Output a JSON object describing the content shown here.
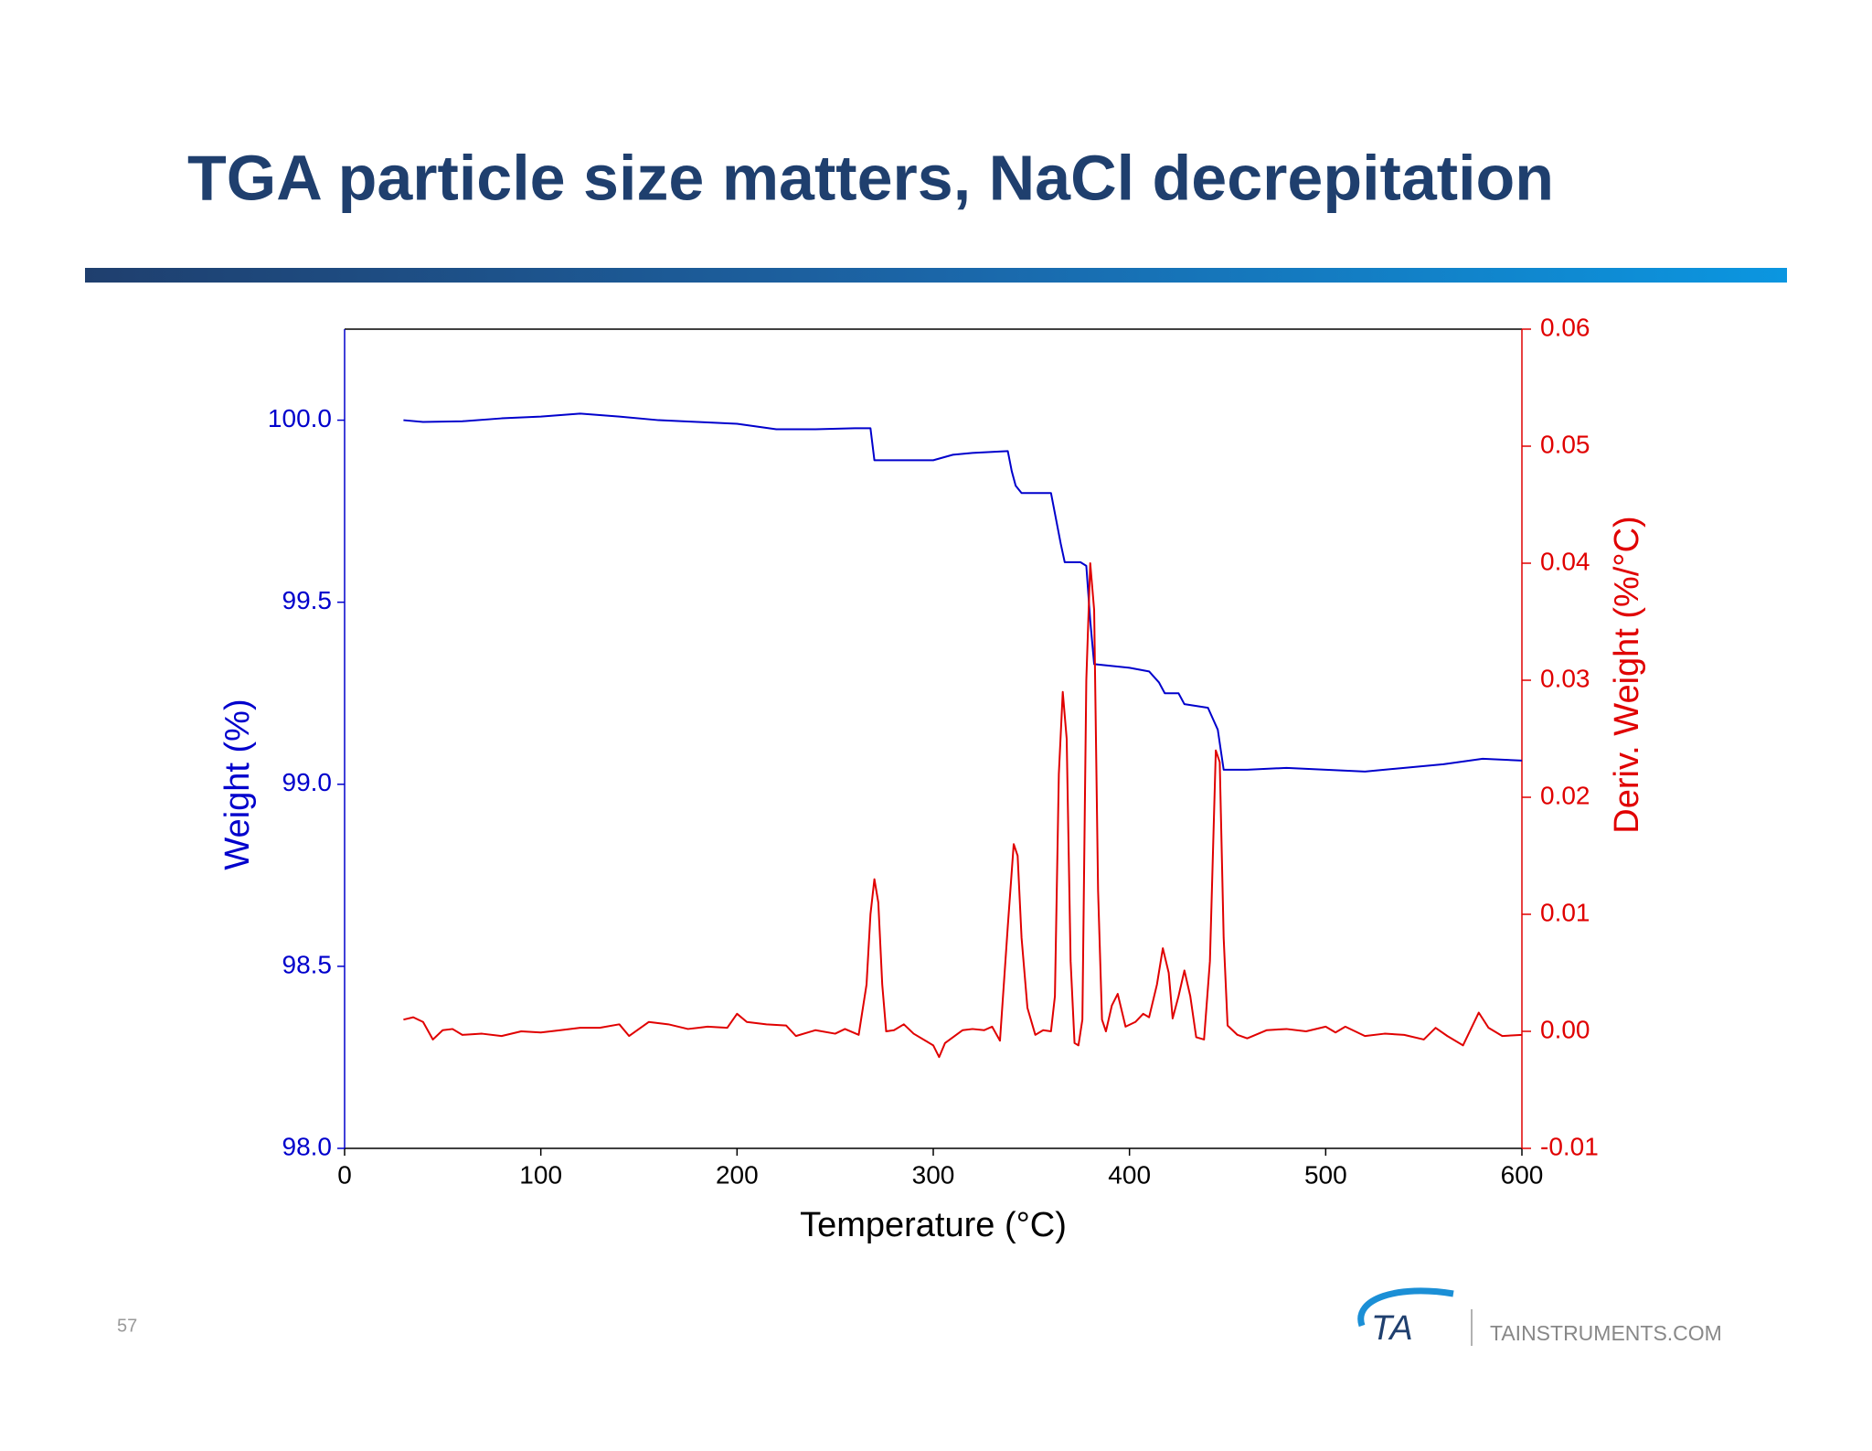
{
  "slide": {
    "title": "TGA particle size matters, NaCl decrepitation",
    "page_number": "57",
    "logo_text": "TA",
    "website": "TAINSTRUMENTS.COM"
  },
  "chart_data": {
    "type": "line",
    "x_label": "Temperature (°C)",
    "y_label": "Weight (%)",
    "y2_label": "Deriv. Weight (%/°C)",
    "xlim": [
      0,
      600
    ],
    "xticks": [
      0,
      100,
      200,
      300,
      400,
      500,
      600
    ],
    "ylim": [
      98.0,
      100.25
    ],
    "yticks": [
      {
        "value": 98,
        "label": "98.0"
      },
      {
        "value": 98.5,
        "label": "98.5"
      },
      {
        "value": 99,
        "label": "99.0"
      },
      {
        "value": 99.5,
        "label": "99.5"
      },
      {
        "value": 100,
        "label": "100.0"
      }
    ],
    "y2lim": [
      -0.01,
      0.06
    ],
    "y2ticks": [
      -0.01,
      {
        "value": 0,
        "label": "0.00"
      },
      0.01,
      0.02,
      0.03,
      0.04,
      0.05,
      0.06
    ],
    "y_color": "#0000cc",
    "y2_color": "#e00000",
    "series": [
      {
        "name": "Weight",
        "color": "#0000cc",
        "x": [
          30,
          40,
          60,
          80,
          100,
          120,
          140,
          160,
          180,
          200,
          220,
          240,
          260,
          268,
          270,
          300,
          310,
          320,
          338,
          340,
          342,
          345,
          360,
          365,
          367,
          375,
          378,
          380,
          382,
          400,
          410,
          415,
          418,
          425,
          428,
          440,
          445,
          448,
          460,
          480,
          500,
          520,
          540,
          560,
          580,
          600
        ],
        "values": [
          100.0,
          99.995,
          99.997,
          100.005,
          100.01,
          100.018,
          100.01,
          100.0,
          99.995,
          99.99,
          99.975,
          99.975,
          99.978,
          99.978,
          99.89,
          99.89,
          99.905,
          99.91,
          99.915,
          99.86,
          99.82,
          99.8,
          99.8,
          99.66,
          99.61,
          99.61,
          99.6,
          99.45,
          99.33,
          99.32,
          99.31,
          99.28,
          99.25,
          99.25,
          99.22,
          99.21,
          99.15,
          99.04,
          99.04,
          99.045,
          99.04,
          99.035,
          99.045,
          99.055,
          99.07,
          99.065
        ]
      },
      {
        "name": "Deriv. Weight",
        "color": "#e00000",
        "axis": "y2",
        "x": [
          30,
          35,
          40,
          45,
          50,
          55,
          60,
          70,
          80,
          90,
          100,
          110,
          120,
          130,
          140,
          145,
          155,
          165,
          175,
          185,
          195,
          200,
          205,
          215,
          225,
          230,
          240,
          250,
          255,
          262,
          266,
          268,
          270,
          272,
          274,
          276,
          280,
          285,
          290,
          300,
          303,
          306,
          315,
          320,
          326,
          330,
          334,
          338,
          341,
          343,
          345,
          348,
          352,
          356,
          360,
          362,
          364,
          366,
          368,
          370,
          372,
          374,
          376,
          378,
          380,
          382,
          384,
          386,
          388,
          391,
          394,
          398,
          403,
          407,
          410,
          414,
          417,
          420,
          422,
          425,
          428,
          431,
          434,
          438,
          441,
          444,
          446,
          448,
          450,
          455,
          460,
          470,
          480,
          490,
          500,
          505,
          510,
          520,
          530,
          540,
          550,
          556,
          562,
          570,
          578,
          583,
          590,
          600
        ],
        "values": [
          0.001,
          0.0012,
          0.0008,
          -0.0007,
          0.0001,
          0.0002,
          -0.0003,
          -0.0002,
          -0.0004,
          0,
          -0.0001,
          0.0001,
          0.0003,
          0.0003,
          0.0006,
          -0.0004,
          0.0008,
          0.0006,
          0.0002,
          0.0004,
          0.0003,
          0.0015,
          0.0008,
          0.0006,
          0.0005,
          -0.0004,
          0.0001,
          -0.0002,
          0.0002,
          -0.0003,
          0.004,
          0.01,
          0.013,
          0.011,
          0.004,
          0,
          0.0001,
          0.0006,
          -0.0002,
          -0.0012,
          -0.0022,
          -0.001,
          0.0001,
          0.0002,
          0.0001,
          0.0004,
          -0.0008,
          0.009,
          0.016,
          0.015,
          0.008,
          0.002,
          -0.0003,
          0.0001,
          0,
          0.003,
          0.022,
          0.029,
          0.025,
          0.006,
          -0.001,
          -0.0012,
          0.001,
          0.03,
          0.04,
          0.036,
          0.012,
          0.001,
          0,
          0.0022,
          0.0032,
          0.0004,
          0.0008,
          0.0015,
          0.0012,
          0.004,
          0.0071,
          0.005,
          0.0011,
          0.003,
          0.0052,
          0.003,
          -0.0005,
          -0.0007,
          0.006,
          0.024,
          0.023,
          0.008,
          0.0005,
          -0.0003,
          -0.0006,
          0.0001,
          0.0002,
          0,
          0.0004,
          -0.0001,
          0.0004,
          -0.0004,
          -0.0002,
          -0.0003,
          -0.0007,
          0.0003,
          -0.0004,
          -0.0012,
          0.0016,
          0.0003,
          -0.0004,
          -0.0003
        ]
      }
    ]
  }
}
